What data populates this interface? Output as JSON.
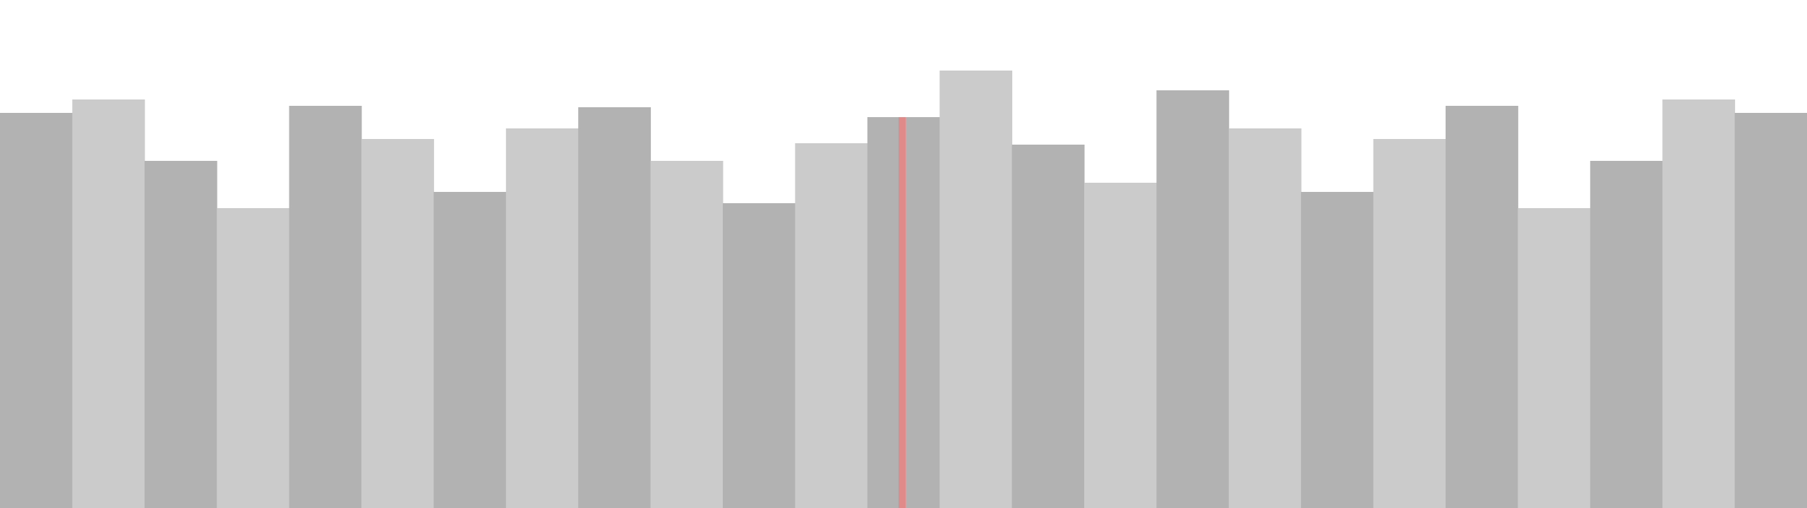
{
  "chart_data": {
    "type": "bar",
    "title": "",
    "xlabel": "",
    "ylabel": "",
    "ylim": [
      0,
      720
    ],
    "grid": false,
    "legend": "none",
    "values": [
      560,
      579,
      492,
      425,
      570,
      523,
      448,
      538,
      568,
      492,
      432,
      517,
      554,
      620,
      515,
      461,
      592,
      538,
      448,
      523,
      570,
      425,
      492,
      579,
      560
    ],
    "colors": {
      "bar_dark": "#b2b2b2",
      "bar_light": "#cbcbcb",
      "marker": "#e08a8a",
      "background": "#ffffff"
    },
    "marker": {
      "bar_index": 12,
      "position": 0.48
    }
  }
}
